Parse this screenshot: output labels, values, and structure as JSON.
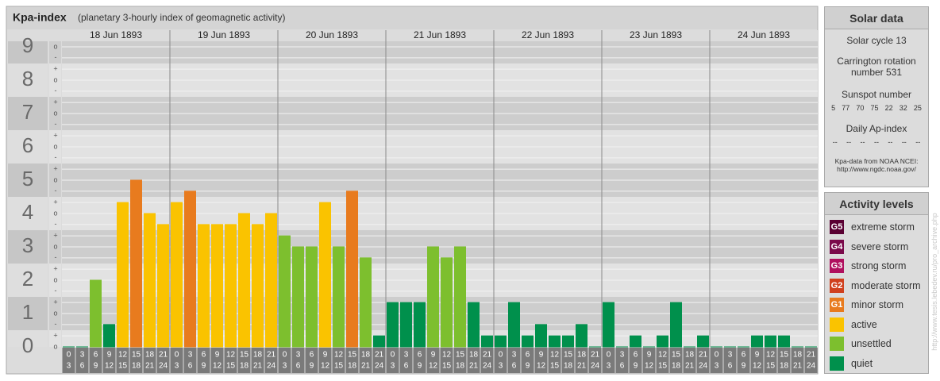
{
  "header": {
    "title": "Kpa-index",
    "subtitle": "(planetary 3-hourly index of geomagnetic activity)"
  },
  "chart_data": {
    "type": "bar",
    "ylim": [
      0,
      9
    ],
    "yticks": [
      0,
      1,
      2,
      3,
      4,
      5,
      6,
      7,
      8,
      9
    ],
    "subticks": [
      {
        "value": 0,
        "label": "o"
      },
      {
        "value": 0.33,
        "label": "+"
      },
      {
        "value": 0.67,
        "label": "-"
      },
      {
        "value": 1,
        "label": "o"
      },
      {
        "value": 1.33,
        "label": "+"
      },
      {
        "value": 1.67,
        "label": "-"
      },
      {
        "value": 2,
        "label": "o"
      },
      {
        "value": 2.33,
        "label": "+"
      },
      {
        "value": 2.67,
        "label": "-"
      },
      {
        "value": 3,
        "label": "o"
      },
      {
        "value": 3.33,
        "label": "+"
      },
      {
        "value": 3.67,
        "label": "-"
      },
      {
        "value": 4,
        "label": "o"
      },
      {
        "value": 4.33,
        "label": "+"
      },
      {
        "value": 4.67,
        "label": "-"
      },
      {
        "value": 5,
        "label": "o"
      },
      {
        "value": 5.33,
        "label": "+"
      },
      {
        "value": 5.67,
        "label": "-"
      },
      {
        "value": 6,
        "label": "o"
      },
      {
        "value": 6.33,
        "label": "+"
      },
      {
        "value": 6.67,
        "label": "-"
      },
      {
        "value": 7,
        "label": "o"
      },
      {
        "value": 7.33,
        "label": "+"
      },
      {
        "value": 7.67,
        "label": "-"
      },
      {
        "value": 8,
        "label": "o"
      },
      {
        "value": 8.33,
        "label": "+"
      },
      {
        "value": 8.67,
        "label": "-"
      },
      {
        "value": 9,
        "label": "o"
      }
    ],
    "hours": [
      [
        0,
        3
      ],
      [
        3,
        6
      ],
      [
        6,
        9
      ],
      [
        9,
        12
      ],
      [
        12,
        15
      ],
      [
        15,
        18
      ],
      [
        18,
        21
      ],
      [
        21,
        24
      ]
    ],
    "days": [
      {
        "label": "18 Jun 1893",
        "values": [
          0,
          0,
          2,
          0.67,
          4.33,
          5,
          4,
          3.67
        ],
        "colors": [
          "#00904c",
          "#00904c",
          "#7dbf2e",
          "#00904c",
          "#fac300",
          "#e87b1e",
          "#fac300",
          "#fac300"
        ]
      },
      {
        "label": "19 Jun 1893",
        "values": [
          4.33,
          4.67,
          3.67,
          3.67,
          3.67,
          4,
          3.67,
          4
        ],
        "colors": [
          "#fac300",
          "#e87b1e",
          "#fac300",
          "#fac300",
          "#fac300",
          "#fac300",
          "#fac300",
          "#fac300"
        ]
      },
      {
        "label": "20 Jun 1893",
        "values": [
          3.33,
          3,
          3,
          4.33,
          3,
          4.67,
          2.67,
          0.33
        ],
        "colors": [
          "#7dbf2e",
          "#7dbf2e",
          "#7dbf2e",
          "#fac300",
          "#7dbf2e",
          "#e87b1e",
          "#7dbf2e",
          "#00904c"
        ]
      },
      {
        "label": "21 Jun 1893",
        "values": [
          1.33,
          1.33,
          1.33,
          3,
          2.67,
          3,
          1.33,
          0.33
        ],
        "colors": [
          "#00904c",
          "#00904c",
          "#00904c",
          "#7dbf2e",
          "#7dbf2e",
          "#7dbf2e",
          "#00904c",
          "#00904c"
        ]
      },
      {
        "label": "22 Jun 1893",
        "values": [
          0.33,
          1.33,
          0.33,
          0.67,
          0.33,
          0.33,
          0.67,
          0
        ],
        "colors": [
          "#00904c",
          "#00904c",
          "#00904c",
          "#00904c",
          "#00904c",
          "#00904c",
          "#00904c",
          "#00904c"
        ]
      },
      {
        "label": "23 Jun 1893",
        "values": [
          1.33,
          0,
          0.33,
          0,
          0.33,
          1.33,
          0,
          0.33
        ],
        "colors": [
          "#00904c",
          "#00904c",
          "#00904c",
          "#00904c",
          "#00904c",
          "#00904c",
          "#00904c",
          "#00904c"
        ]
      },
      {
        "label": "24 Jun 1893",
        "values": [
          0,
          0,
          0,
          0.33,
          0.33,
          0.33,
          0,
          0
        ],
        "colors": [
          "#00904c",
          "#00904c",
          "#00904c",
          "#00904c",
          "#00904c",
          "#00904c",
          "#00904c",
          "#00904c"
        ]
      }
    ]
  },
  "solar_data": {
    "title": "Solar data",
    "cycle": "Solar cycle 13",
    "carrington": "Carrington rotation number 531",
    "sunspot_title": "Sunspot number",
    "sunspot": [
      5,
      77,
      70,
      75,
      22,
      32,
      25
    ],
    "ap_title": "Daily Ap-index",
    "ap": [
      "--",
      "--",
      "--",
      "--",
      "--",
      "--",
      "--"
    ],
    "source": "Kpa-data from NOAA NCEI:",
    "source_url": "http://www.ngdc.noaa.gov/"
  },
  "activity_levels": {
    "title": "Activity levels",
    "items": [
      {
        "badge": "G5",
        "label": "extreme storm",
        "color": "#5a0032"
      },
      {
        "badge": "G4",
        "label": "severe storm",
        "color": "#7a0a4a"
      },
      {
        "badge": "G3",
        "label": "strong storm",
        "color": "#b0105e"
      },
      {
        "badge": "G2",
        "label": "moderate storm",
        "color": "#d0401e"
      },
      {
        "badge": "G1",
        "label": "minor storm",
        "color": "#e87b1e"
      },
      {
        "label": "active",
        "color": "#fac300"
      },
      {
        "label": "unsettled",
        "color": "#7dbf2e"
      },
      {
        "label": "quiet",
        "color": "#00904c"
      }
    ]
  },
  "side_url": "http://www.tesis.lebedev.ru/pro_archive.php"
}
